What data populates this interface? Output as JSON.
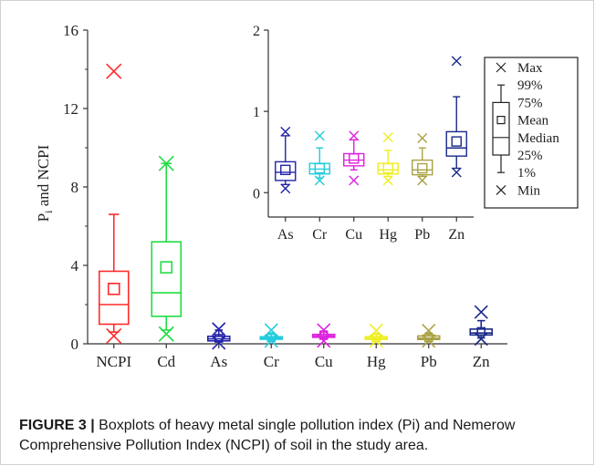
{
  "caption": {
    "label": "FIGURE 3 |",
    "text": "Boxplots of heavy metal single pollution index (Pi) and Nemerow Comprehensive Pollution Index (NCPI) of soil in the study area."
  },
  "chart_data": [
    {
      "type": "boxplot",
      "ylabel": "P_i and NCPI",
      "ylim": [
        0,
        16
      ],
      "yticks": [
        "0",
        "4",
        "8",
        "12",
        "16"
      ],
      "categories": [
        "NCPI",
        "Cd",
        "As",
        "Cr",
        "Cu",
        "Hg",
        "Pb",
        "Zn"
      ],
      "series": [
        {
          "category": "NCPI",
          "color": "#ff2a2a",
          "min": 0.4,
          "p1": 0.6,
          "q1": 1.0,
          "median": 2.0,
          "mean": 2.8,
          "q3": 3.7,
          "p99": 6.6,
          "max": 13.9
        },
        {
          "category": "Cd",
          "color": "#22dd44",
          "min": 0.5,
          "p1": 0.7,
          "q1": 1.4,
          "median": 2.6,
          "mean": 3.9,
          "q3": 5.2,
          "p99": 9.2,
          "max": 9.2
        },
        {
          "category": "As",
          "color": "#2222aa",
          "min": 0.05,
          "p1": 0.1,
          "q1": 0.15,
          "median": 0.25,
          "mean": 0.28,
          "q3": 0.38,
          "p99": 0.7,
          "max": 0.75
        },
        {
          "category": "Cr",
          "color": "#22ccdd",
          "min": 0.15,
          "p1": 0.18,
          "q1": 0.23,
          "median": 0.29,
          "mean": 0.3,
          "q3": 0.36,
          "p99": 0.55,
          "max": 0.7
        },
        {
          "category": "Cu",
          "color": "#dd22dd",
          "min": 0.15,
          "p1": 0.28,
          "q1": 0.33,
          "median": 0.4,
          "mean": 0.42,
          "q3": 0.48,
          "p99": 0.65,
          "max": 0.7
        },
        {
          "category": "Hg",
          "color": "#eeee22",
          "min": 0.15,
          "p1": 0.2,
          "q1": 0.23,
          "median": 0.28,
          "mean": 0.3,
          "q3": 0.36,
          "p99": 0.52,
          "max": 0.68
        },
        {
          "category": "Pb",
          "color": "#aaa244",
          "min": 0.15,
          "p1": 0.2,
          "q1": 0.22,
          "median": 0.28,
          "mean": 0.3,
          "q3": 0.4,
          "p99": 0.55,
          "max": 0.67
        },
        {
          "category": "Zn",
          "color": "#1a2a8a",
          "min": 0.25,
          "p1": 0.3,
          "q1": 0.45,
          "median": 0.55,
          "mean": 0.63,
          "q3": 0.75,
          "p99": 1.18,
          "max": 1.62
        }
      ]
    },
    {
      "type": "boxplot",
      "inset": true,
      "ylim": [
        -0.3,
        2
      ],
      "yticks": [
        "0",
        "1",
        "2"
      ],
      "categories": [
        "As",
        "Cr",
        "Cu",
        "Hg",
        "Pb",
        "Zn"
      ]
    }
  ],
  "legend": {
    "items": [
      "Max",
      "99%",
      "75%",
      "Mean",
      "Median",
      "25%",
      "1%",
      "Min"
    ]
  }
}
